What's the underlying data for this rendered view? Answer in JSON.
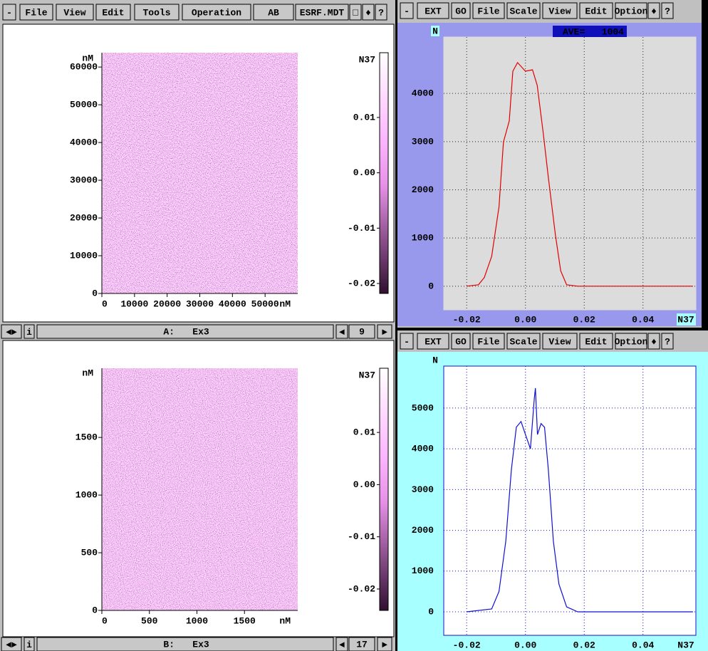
{
  "left_toolbar": {
    "items": [
      "File",
      "View",
      "Edit",
      "Tools",
      "Operation"
    ],
    "mode": "AB",
    "file": "ESRF.MDT"
  },
  "image_a": {
    "x_unit": "nM",
    "y_unit": "nM",
    "xlim": [
      0,
      60000
    ],
    "ylim": [
      0,
      63800
    ],
    "xticks": [
      0,
      10000,
      20000,
      30000,
      40000,
      50000
    ],
    "yticks": [
      0,
      10000,
      20000,
      30000,
      40000,
      50000,
      60000
    ],
    "colorbar": {
      "label": "N37",
      "lim": [
        -0.0218,
        0.0217
      ],
      "ticks": [
        0.01,
        {
          "value": 0,
          "label": "0.00"
        },
        -0.01,
        -0.02
      ]
    }
  },
  "status_a": {
    "label": "A:",
    "name": "Ex3",
    "frame": 9
  },
  "image_b": {
    "x_unit": "nM",
    "y_unit": "nM",
    "xlim": [
      0,
      2060
    ],
    "ylim": [
      0,
      2100
    ],
    "xticks": [
      0,
      500,
      1000,
      1500
    ],
    "yticks": [
      0,
      500,
      1000,
      1500
    ],
    "colorbar": {
      "label": "N37",
      "lim": [
        -0.0241,
        0.0223
      ],
      "ticks": [
        0.01,
        {
          "value": 0,
          "label": "0.00"
        },
        -0.01,
        -0.02
      ]
    }
  },
  "status_b": {
    "label": "B:",
    "name": "Ex3",
    "frame": 17
  },
  "histogram_top": {
    "toolbar": [
      "EXT",
      "GO",
      "File",
      "Scale",
      "View",
      "Edit",
      "Option"
    ],
    "y_label": "N",
    "x_label": "N37",
    "ave_label": "AVE=",
    "ave": 1004,
    "color": "#e00000",
    "xlim": [
      -0.0278,
      0.058
    ],
    "ylim": [
      -490,
      5170
    ],
    "xticks": [
      -0.02,
      {
        "value": 0,
        "label": "0.00"
      },
      0.02,
      0.04
    ],
    "yticks": [
      0,
      1000,
      2000,
      3000,
      4000
    ],
    "x": [
      -0.02,
      -0.016,
      -0.014,
      -0.0115,
      -0.009,
      -0.0075,
      -0.0055,
      -0.0043,
      -0.0027,
      0,
      0.0024,
      0.004,
      0.006,
      0.0078,
      0.0102,
      0.012,
      0.014,
      0.0178,
      0.057
    ],
    "values": [
      0,
      30,
      180,
      620,
      1650,
      2990,
      3430,
      4460,
      4640,
      4460,
      4490,
      4170,
      3200,
      2250,
      1060,
      320,
      30,
      0,
      0
    ]
  },
  "histogram_bottom": {
    "toolbar": [
      "EXT",
      "GO",
      "File",
      "Scale",
      "View",
      "Edit",
      "Option"
    ],
    "y_label": "N",
    "x_label": "N37",
    "color": "#1010d0",
    "xlim": [
      -0.0278,
      0.058
    ],
    "ylim": [
      -577,
      6030
    ],
    "xticks": [
      -0.02,
      {
        "value": 0,
        "label": "0.00"
      },
      0.02,
      0.04
    ],
    "yticks": [
      0,
      1000,
      2000,
      3000,
      4000,
      5000
    ],
    "x": [
      -0.02,
      -0.0115,
      -0.009,
      -0.0067,
      -0.0048,
      -0.0031,
      -0.0015,
      0,
      0.0017,
      0.003,
      0.0034,
      0.0041,
      0.0053,
      0.0065,
      0.0078,
      0.0095,
      0.0114,
      0.014,
      0.0178,
      0.057
    ],
    "values": [
      0,
      70,
      500,
      1730,
      3480,
      4530,
      4670,
      4350,
      4000,
      5230,
      5490,
      4350,
      4620,
      4530,
      3480,
      1730,
      680,
      120,
      0,
      0
    ]
  }
}
